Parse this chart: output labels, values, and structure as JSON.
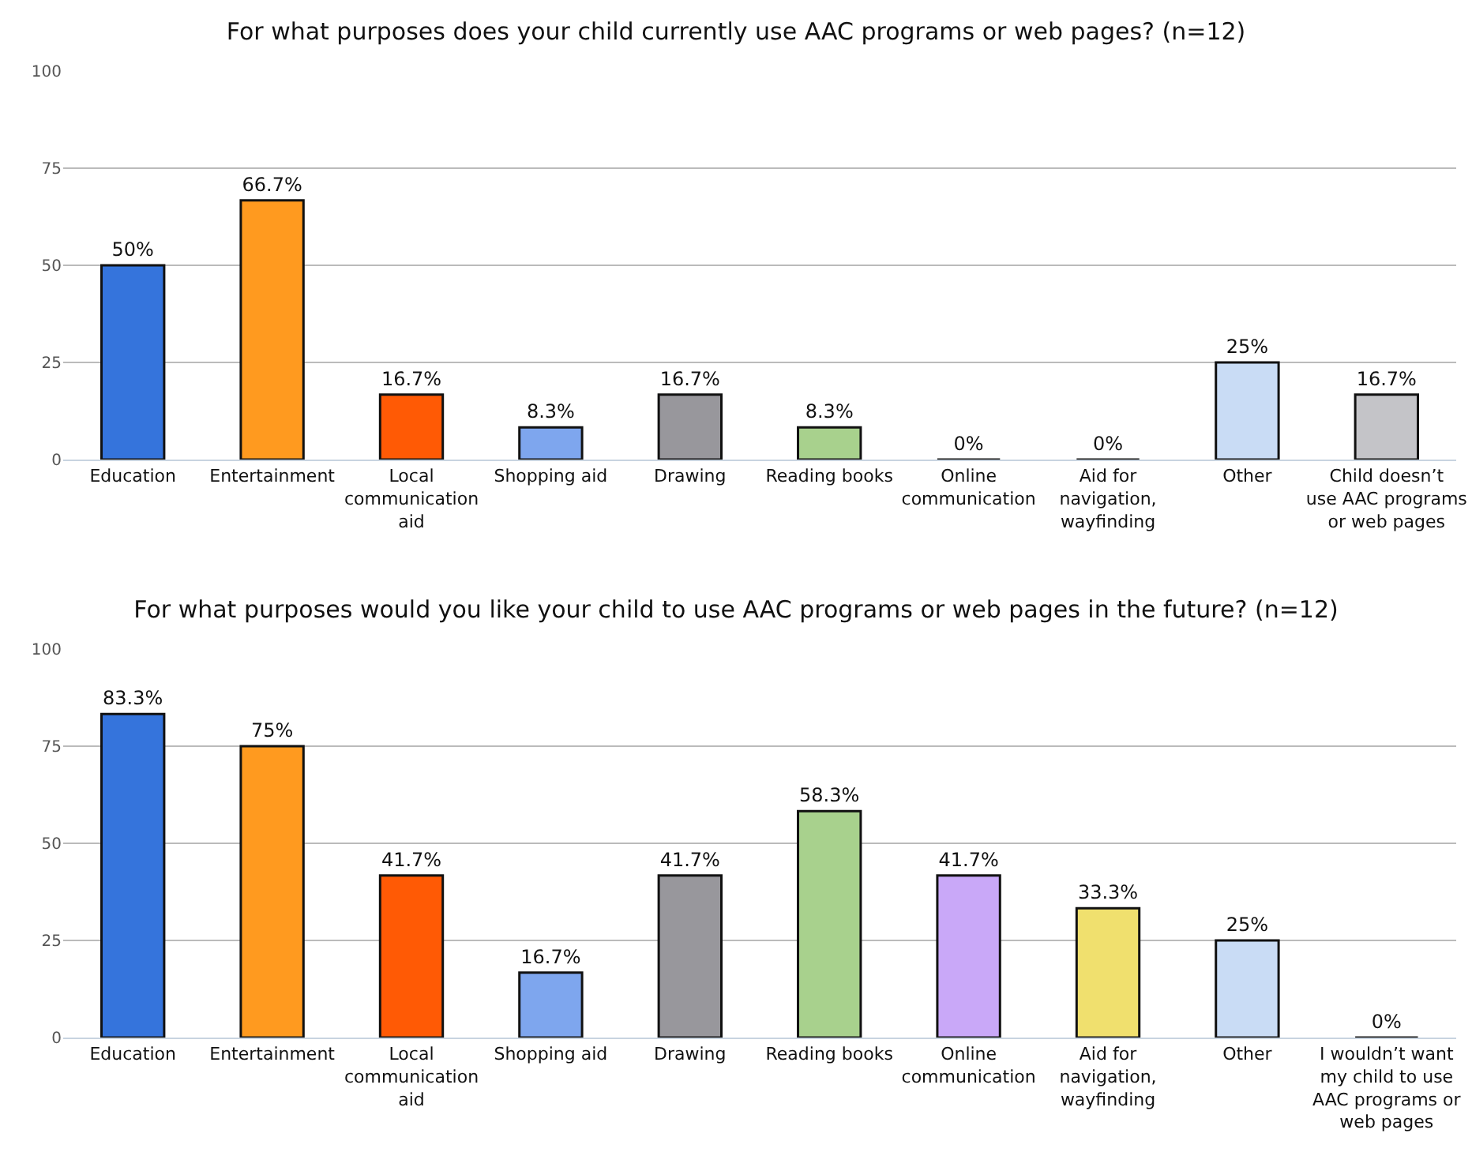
{
  "chart_data": [
    {
      "type": "bar",
      "title": "For what purposes does your child currently use AAC programs or web pages? (n=12)",
      "categories": [
        "Education",
        "Entertainment",
        "Local communication aid",
        "Shopping aid",
        "Drawing",
        "Reading books",
        "Online communication",
        "Aid for navigation, wayfinding",
        "Other",
        "Child doesn’t use AAC programs or web pages"
      ],
      "values": [
        50,
        66.7,
        16.7,
        8.3,
        16.7,
        8.3,
        0,
        0,
        25,
        16.7
      ],
      "colors": [
        "#3574dc",
        "#ff9a1f",
        "#ff5a05",
        "#7ea6ee",
        "#98979c",
        "#a8d18d",
        "#111111",
        "#111111",
        "#c9dcf5",
        "#c4c4c8"
      ],
      "value_labels": [
        "50%",
        "66.7%",
        "16.7%",
        "8.3%",
        "16.7%",
        "8.3%",
        "0%",
        "0%",
        "25%",
        "16.7%"
      ],
      "ylim": [
        0,
        100
      ],
      "yticks": [
        0,
        25,
        50,
        75,
        100
      ],
      "grid": "y"
    },
    {
      "type": "bar",
      "title": "For what purposes would you like your child to use AAC programs or web pages in the future? (n=12)",
      "categories": [
        "Education",
        "Entertainment",
        "Local communication aid",
        "Shopping aid",
        "Drawing",
        "Reading books",
        "Online communication",
        "Aid for navigation, wayfinding",
        "Other",
        "I wouldn’t want my child to use AAC programs or web pages"
      ],
      "values": [
        83.3,
        75,
        41.7,
        16.7,
        41.7,
        58.3,
        41.7,
        33.3,
        25,
        0
      ],
      "colors": [
        "#3574dc",
        "#ff9a1f",
        "#ff5a05",
        "#7ea6ee",
        "#98979c",
        "#a8d18d",
        "#c9a8f8",
        "#f0e06e",
        "#c9dcf5",
        "#111111"
      ],
      "value_labels": [
        "83.3%",
        "75%",
        "41.7%",
        "16.7%",
        "41.7%",
        "58.3%",
        "41.7%",
        "33.3%",
        "25%",
        "0%"
      ],
      "ylim": [
        0,
        100
      ],
      "yticks": [
        0,
        25,
        50,
        75,
        100
      ],
      "grid": "y"
    }
  ]
}
